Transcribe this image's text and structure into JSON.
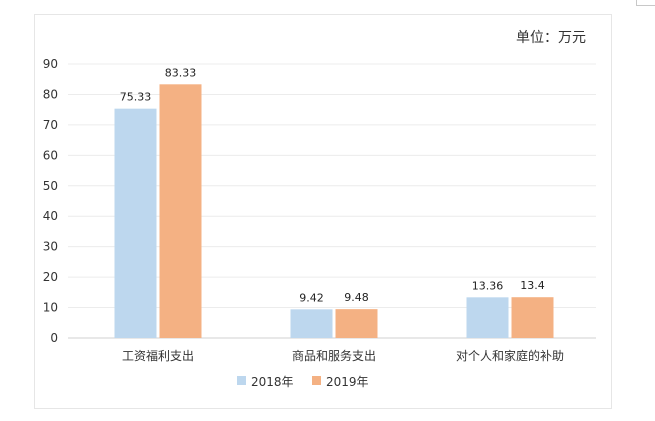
{
  "chart_data": {
    "type": "bar",
    "unit_label": "单位：万元",
    "categories": [
      "工资福利支出",
      "商品和服务支出",
      "对个人和家庭的补助"
    ],
    "series": [
      {
        "name": "2018年",
        "values": [
          75.33,
          9.42,
          13.36
        ],
        "value_labels": [
          "75.33",
          "9.42",
          "13.36"
        ],
        "color": "#bdd7ee"
      },
      {
        "name": "2019年",
        "values": [
          83.33,
          9.48,
          13.4
        ],
        "value_labels": [
          "83.33",
          "9.48",
          "13.4"
        ],
        "color": "#f4b183"
      }
    ],
    "y_ticks": [
      "0",
      "10",
      "20",
      "30",
      "40",
      "50",
      "60",
      "70",
      "80",
      "90"
    ],
    "ylim": [
      0,
      90
    ],
    "grid": true,
    "legend_position": "bottom"
  }
}
